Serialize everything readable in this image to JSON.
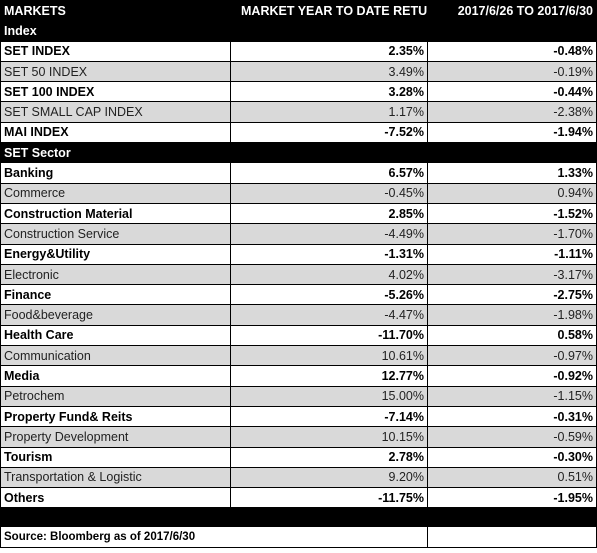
{
  "header": {
    "col1": "MARKETS",
    "col2": "MARKET YEAR TO DATE RETURN",
    "col3": "2017/6/26 TO 2017/6/30"
  },
  "sections": [
    {
      "title": "Index",
      "rows": [
        {
          "name": "SET INDEX",
          "ytd": "2.35%",
          "week": "-0.48%",
          "style": "bold"
        },
        {
          "name": "SET 50 INDEX",
          "ytd": "3.49%",
          "week": "-0.19%",
          "style": "light"
        },
        {
          "name": "SET 100 INDEX",
          "ytd": "3.28%",
          "week": "-0.44%",
          "style": "bold"
        },
        {
          "name": "SET SMALL CAP INDEX",
          "ytd": "1.17%",
          "week": "-2.38%",
          "style": "light"
        },
        {
          "name": "MAI INDEX",
          "ytd": "-7.52%",
          "week": "-1.94%",
          "style": "bold"
        }
      ]
    },
    {
      "title": "SET Sector",
      "rows": [
        {
          "name": "Banking",
          "ytd": "6.57%",
          "week": "1.33%",
          "style": "bold"
        },
        {
          "name": "Commerce",
          "ytd": "-0.45%",
          "week": "0.94%",
          "style": "light"
        },
        {
          "name": "Construction Material",
          "ytd": "2.85%",
          "week": "-1.52%",
          "style": "bold"
        },
        {
          "name": "Construction Service",
          "ytd": "-4.49%",
          "week": "-1.70%",
          "style": "light"
        },
        {
          "name": "Energy&Utility",
          "ytd": "-1.31%",
          "week": "-1.11%",
          "style": "bold"
        },
        {
          "name": "Electronic",
          "ytd": "4.02%",
          "week": "-3.17%",
          "style": "light"
        },
        {
          "name": "Finance",
          "ytd": "-5.26%",
          "week": "-2.75%",
          "style": "bold"
        },
        {
          "name": "Food&beverage",
          "ytd": "-4.47%",
          "week": "-1.98%",
          "style": "light"
        },
        {
          "name": "Health Care",
          "ytd": "-11.70%",
          "week": "0.58%",
          "style": "bold"
        },
        {
          "name": "Communication",
          "ytd": "10.61%",
          "week": "-0.97%",
          "style": "light"
        },
        {
          "name": "Media",
          "ytd": "12.77%",
          "week": "-0.92%",
          "style": "bold"
        },
        {
          "name": "Petrochem",
          "ytd": "15.00%",
          "week": "-1.15%",
          "style": "light"
        },
        {
          "name": "Property Fund& Reits",
          "ytd": "-7.14%",
          "week": "-0.31%",
          "style": "bold"
        },
        {
          "name": "Property Development",
          "ytd": "10.15%",
          "week": "-0.59%",
          "style": "light"
        },
        {
          "name": "Tourism",
          "ytd": "2.78%",
          "week": "-0.30%",
          "style": "bold"
        },
        {
          "name": "Transportation & Logistic",
          "ytd": "9.20%",
          "week": "0.51%",
          "style": "light"
        },
        {
          "name": "Others",
          "ytd": "-11.75%",
          "week": "-1.95%",
          "style": "bold"
        }
      ]
    }
  ],
  "footer": {
    "source": "Source: Bloomberg as of 2017/6/30"
  }
}
